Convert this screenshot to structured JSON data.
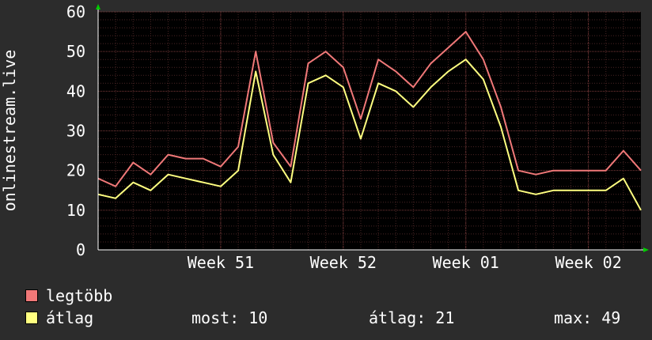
{
  "chart_data": {
    "type": "line",
    "title": "",
    "ylabel": "onlinestream.live",
    "xlabel": "",
    "ylim": [
      0,
      60
    ],
    "yticks": [
      0,
      10,
      20,
      30,
      40,
      50,
      60
    ],
    "grid": true,
    "legend_position": "bottom",
    "x_ticks": [
      {
        "label": "Week 51",
        "x": 7
      },
      {
        "label": "Week 52",
        "x": 14
      },
      {
        "label": "Week 01",
        "x": 21
      },
      {
        "label": "Week 02",
        "x": 28
      }
    ],
    "x_range": [
      0,
      31
    ],
    "series": [
      {
        "name": "legtöbb",
        "color": "#f07878",
        "x": [
          0,
          1,
          2,
          3,
          4,
          5,
          6,
          7,
          8,
          9,
          10,
          11,
          12,
          13,
          14,
          15,
          16,
          17,
          18,
          19,
          20,
          21,
          22,
          23,
          24,
          25,
          26,
          27,
          28,
          29,
          30,
          31
        ],
        "values": [
          18,
          16,
          22,
          19,
          24,
          23,
          23,
          21,
          26,
          50,
          27,
          21,
          47,
          50,
          46,
          33,
          48,
          45,
          41,
          47,
          51,
          55,
          48,
          36,
          20,
          19,
          20,
          20,
          20,
          20,
          25,
          20
        ]
      },
      {
        "name": "átlag",
        "color": "#ffff80",
        "x": [
          0,
          1,
          2,
          3,
          4,
          5,
          6,
          7,
          8,
          9,
          10,
          11,
          12,
          13,
          14,
          15,
          16,
          17,
          18,
          19,
          20,
          21,
          22,
          23,
          24,
          25,
          26,
          27,
          28,
          29,
          30,
          31
        ],
        "values": [
          14,
          13,
          17,
          15,
          19,
          18,
          17,
          16,
          20,
          45,
          24,
          17,
          42,
          44,
          41,
          28,
          42,
          40,
          36,
          41,
          45,
          48,
          43,
          31,
          15,
          14,
          15,
          15,
          15,
          15,
          18,
          10
        ]
      }
    ]
  },
  "legend": {
    "items": [
      {
        "label": "legtöbb",
        "color": "#f07878"
      },
      {
        "label": "átlag",
        "color": "#ffff80"
      }
    ],
    "stats": {
      "most_label": "most:",
      "most_value": "10",
      "avg_label": "átlag:",
      "avg_value": "21",
      "max_label": "max:",
      "max_value": "49"
    }
  }
}
